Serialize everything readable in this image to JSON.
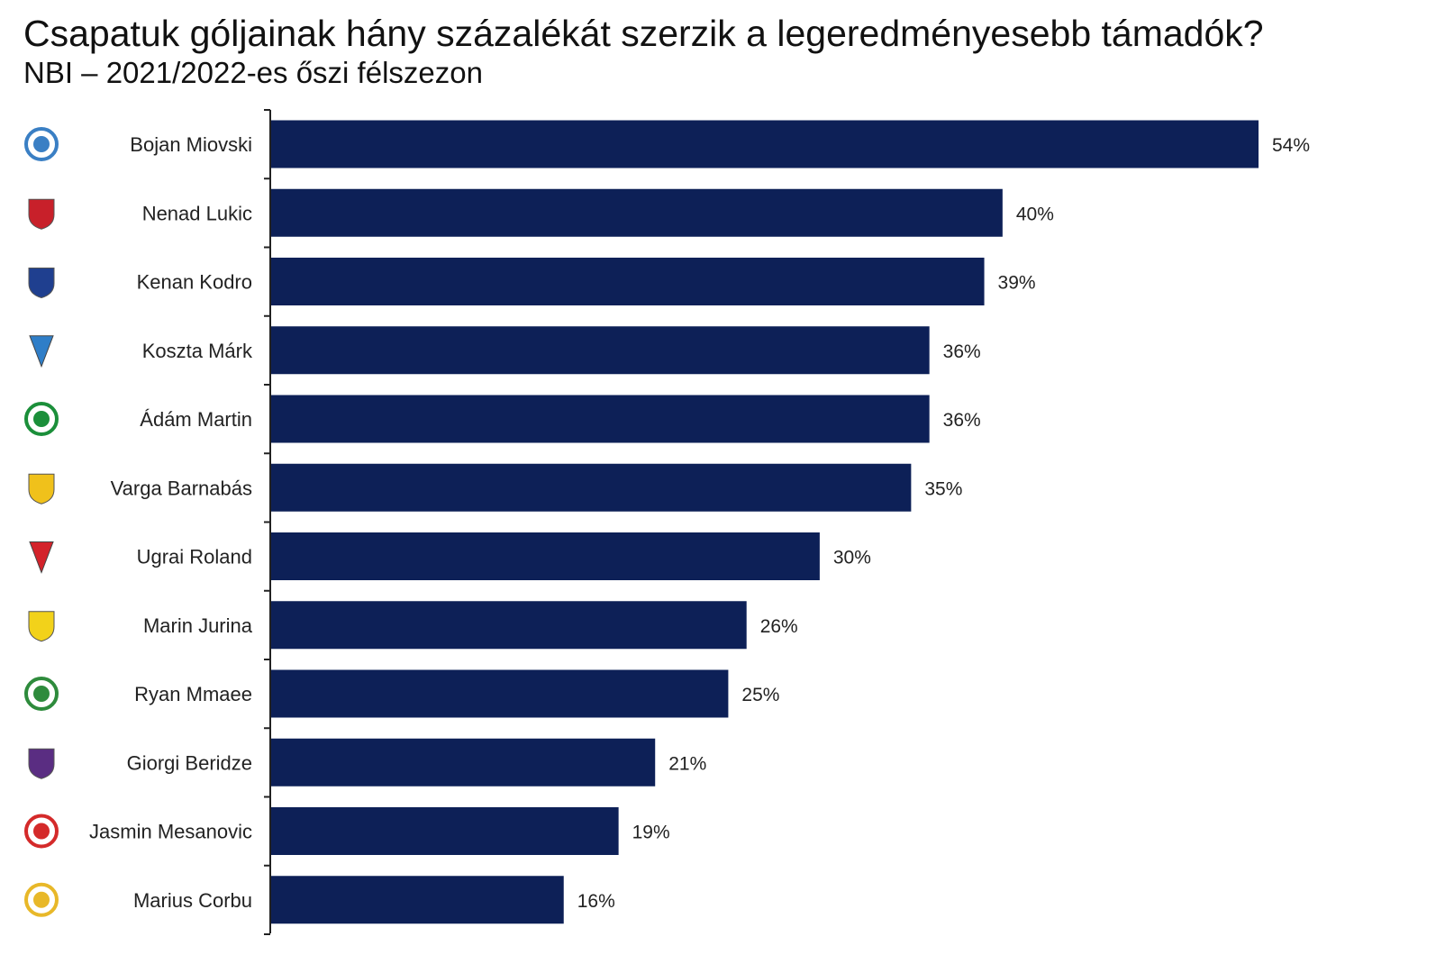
{
  "chart_data": {
    "type": "bar",
    "orientation": "horizontal",
    "title": "Csapatuk góljainak hány százalékát szerzik a legeredményesebb támadók?",
    "subtitle": "NBI – 2021/2022-es őszi félszezon",
    "categories": [
      "Bojan Miovski",
      "Nenad Lukic",
      "Kenan Kodro",
      "Koszta Márk",
      "Ádám Martin",
      "Varga Barnabás",
      "Ugrai Roland",
      "Marin Jurina",
      "Ryan Mmaee",
      "Giorgi Beridze",
      "Jasmin Mesanovic",
      "Marius Corbu"
    ],
    "values": [
      54,
      40,
      39,
      36,
      36,
      35,
      30,
      26,
      25,
      21,
      19,
      16
    ],
    "data_labels": [
      "54%",
      "40%",
      "39%",
      "36%",
      "36%",
      "35%",
      "30%",
      "26%",
      "25%",
      "21%",
      "19%",
      "16%"
    ],
    "value_unit": "%",
    "xlim": [
      0,
      54
    ],
    "grid": false,
    "legend": "none",
    "bar_color": "#0d2057",
    "team_logo_icons": [
      "mtk-crest-icon",
      "honved-crest-icon",
      "fehervar-crest-icon",
      "zte-crest-icon",
      "paks-crest-icon",
      "mezokovesd-crest-icon",
      "dvsc-crest-icon",
      "gyirmot-crest-icon",
      "ferencvaros-crest-icon",
      "ujpest-crest-icon",
      "kisvarda-crest-icon",
      "puskas-akademia-crest-icon"
    ],
    "team_logo_colors": [
      "#3a7fc4",
      "#c8202a",
      "#1f3f8f",
      "#2f7ec8",
      "#1b8f3a",
      "#f0c11b",
      "#d3222a",
      "#f2d21a",
      "#2e8b3c",
      "#5a2d82",
      "#d42a2a",
      "#e8b829"
    ]
  }
}
